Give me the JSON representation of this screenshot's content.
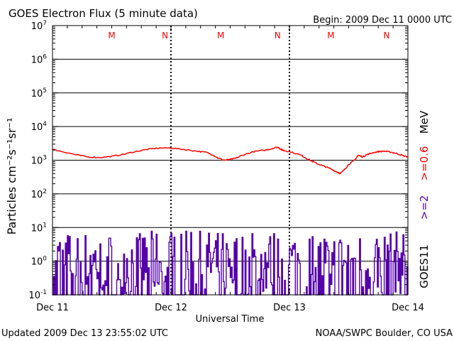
{
  "header": {
    "title": "GOES Electron Flux (5 minute data)",
    "begin": "Begin: 2009 Dec 11 0000 UTC"
  },
  "footer": {
    "updated": "Updated 2009 Dec 13 23:55:02 UTC",
    "source": "NOAA/SWPC Boulder, CO USA"
  },
  "colors": {
    "flux_high": "#ff0000",
    "flux_low": "#5500aa",
    "markers": "#ff0000",
    "axis": "#000000"
  },
  "chart_data": {
    "type": "line",
    "title": "GOES Electron Flux (5 minute data)",
    "xlabel": "Universal Time",
    "ylabel": "Particles cm⁻²s⁻¹sr⁻¹",
    "yscale": "log",
    "ylim": [
      0.1,
      10000000
    ],
    "xlim_days": [
      0,
      3
    ],
    "x_ticks": [
      "Dec 11",
      "Dec 12",
      "Dec 13",
      "Dec 14"
    ],
    "y_tick_bases": [
      "10",
      "10",
      "10",
      "10",
      "10",
      "10",
      "10",
      "10",
      "10"
    ],
    "y_tick_exponents": [
      "-1",
      "0",
      "1",
      "2",
      "3",
      "4",
      "5",
      "6",
      "7"
    ],
    "threshold": 1000,
    "grid": true,
    "right_labels": {
      "satellite": "GOES11",
      "low_energy": ">=2",
      "high_energy": ">=0.6",
      "unit": "MeV"
    },
    "markers": [
      {
        "label": "M",
        "day": 0.5
      },
      {
        "label": "N",
        "day": 0.95
      },
      {
        "label": "M",
        "day": 1.42
      },
      {
        "label": "N",
        "day": 1.9
      },
      {
        "label": "M",
        "day": 2.35
      },
      {
        "label": "N",
        "day": 2.82
      }
    ],
    "series": [
      {
        "name": ">=0.6 MeV",
        "points": [
          [
            0.0,
            2100
          ],
          [
            0.1,
            1750
          ],
          [
            0.2,
            1450
          ],
          [
            0.3,
            1250
          ],
          [
            0.4,
            1200
          ],
          [
            0.5,
            1300
          ],
          [
            0.6,
            1500
          ],
          [
            0.7,
            1800
          ],
          [
            0.8,
            2100
          ],
          [
            0.9,
            2300
          ],
          [
            1.0,
            2300
          ],
          [
            1.1,
            2100
          ],
          [
            1.2,
            1900
          ],
          [
            1.3,
            1700
          ],
          [
            1.35,
            1450
          ],
          [
            1.4,
            1150
          ],
          [
            1.45,
            1000
          ],
          [
            1.5,
            1050
          ],
          [
            1.55,
            1150
          ],
          [
            1.6,
            1400
          ],
          [
            1.7,
            1800
          ],
          [
            1.8,
            2000
          ],
          [
            1.85,
            2200
          ],
          [
            1.9,
            2450
          ],
          [
            1.93,
            2100
          ],
          [
            1.95,
            1950
          ],
          [
            2.0,
            1800
          ],
          [
            2.1,
            1400
          ],
          [
            2.15,
            1100
          ],
          [
            2.2,
            900
          ],
          [
            2.25,
            750
          ],
          [
            2.3,
            650
          ],
          [
            2.35,
            550
          ],
          [
            2.4,
            450
          ],
          [
            2.43,
            400
          ],
          [
            2.47,
            550
          ],
          [
            2.5,
            750
          ],
          [
            2.55,
            1000
          ],
          [
            2.58,
            1400
          ],
          [
            2.62,
            1250
          ],
          [
            2.65,
            1450
          ],
          [
            2.7,
            1650
          ],
          [
            2.75,
            1800
          ],
          [
            2.8,
            1850
          ],
          [
            2.85,
            1750
          ],
          [
            2.9,
            1600
          ],
          [
            2.95,
            1400
          ],
          [
            3.0,
            1250
          ]
        ]
      },
      {
        "name": ">=2 MeV",
        "generated": "spiky",
        "min": 0.1,
        "max": 8
      }
    ]
  }
}
